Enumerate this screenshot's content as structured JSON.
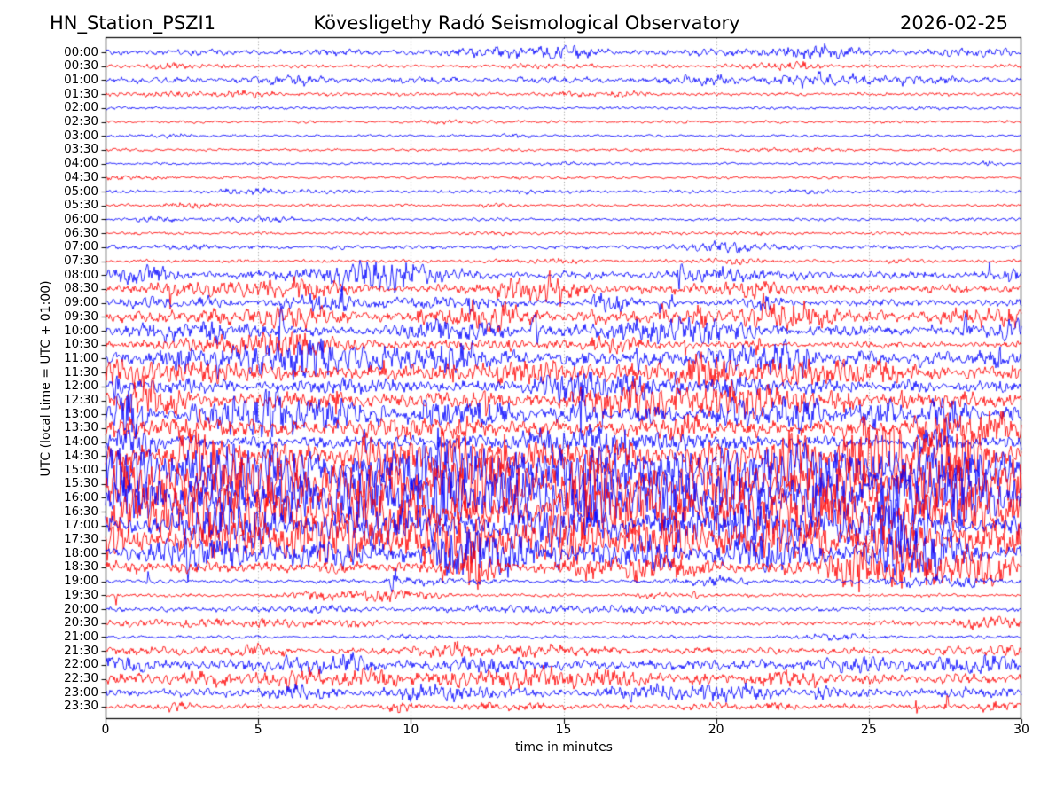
{
  "header": {
    "station": "HN_Station_PSZI1",
    "observatory": "Kövesligethy Radó Seismological Observatory",
    "date": "2026-02-25"
  },
  "chart_data": {
    "type": "line",
    "subtype": "helicorder-seismogram",
    "title": "HN_Station_PSZI1  Kövesligethy Radó Seismological Observatory  2026-02-25",
    "xlabel": "time in minutes",
    "ylabel": "UTC (local time = UTC + 01:00)",
    "xlim": [
      0,
      30
    ],
    "x_ticks": [
      0,
      5,
      10,
      15,
      20,
      25,
      30
    ],
    "grid": "vertical dotted gridlines at 5-minute intervals",
    "grid_color": "#9a9a9a",
    "spine_color": "#000000",
    "trace_colors": {
      "even_rows": "#0000ff",
      "odd_rows": "#ff0000"
    },
    "minutes_per_row": 30,
    "rows": [
      {
        "time": "00:00",
        "color": "#0000ff",
        "amp": 2.2,
        "burst": 0.2,
        "spike": 3
      },
      {
        "time": "00:30",
        "color": "#ff0000",
        "amp": 1.5,
        "burst": 0.15,
        "spike": 3
      },
      {
        "time": "01:00",
        "color": "#0000ff",
        "amp": 2.4,
        "burst": 0.2,
        "spike": 3
      },
      {
        "time": "01:30",
        "color": "#ff0000",
        "amp": 1.4,
        "burst": 0.1,
        "spike": 2
      },
      {
        "time": "02:00",
        "color": "#0000ff",
        "amp": 1.2,
        "burst": 0.05,
        "spike": 2
      },
      {
        "time": "02:30",
        "color": "#ff0000",
        "amp": 1.2,
        "burst": 0.05,
        "spike": 2
      },
      {
        "time": "03:00",
        "color": "#0000ff",
        "amp": 1.1,
        "burst": 0.05,
        "spike": 2
      },
      {
        "time": "03:30",
        "color": "#ff0000",
        "amp": 1.2,
        "burst": 0.05,
        "spike": 2
      },
      {
        "time": "04:00",
        "color": "#0000ff",
        "amp": 1.1,
        "burst": 0.05,
        "spike": 2
      },
      {
        "time": "04:30",
        "color": "#ff0000",
        "amp": 1.2,
        "burst": 0.05,
        "spike": 2
      },
      {
        "time": "05:00",
        "color": "#0000ff",
        "amp": 1.3,
        "burst": 0.1,
        "spike": 2
      },
      {
        "time": "05:30",
        "color": "#ff0000",
        "amp": 1.2,
        "burst": 0.05,
        "spike": 2
      },
      {
        "time": "06:00",
        "color": "#0000ff",
        "amp": 1.3,
        "burst": 0.1,
        "spike": 2
      },
      {
        "time": "06:30",
        "color": "#ff0000",
        "amp": 1.2,
        "burst": 0.05,
        "spike": 2
      },
      {
        "time": "07:00",
        "color": "#0000ff",
        "amp": 1.6,
        "burst": 0.15,
        "spike": 3
      },
      {
        "time": "07:30",
        "color": "#ff0000",
        "amp": 1.3,
        "burst": 0.1,
        "spike": 2
      },
      {
        "time": "08:00",
        "color": "#0000ff",
        "amp": 2.4,
        "burst": 0.5,
        "spike": 4
      },
      {
        "time": "08:30",
        "color": "#ff0000",
        "amp": 2.6,
        "burst": 0.6,
        "spike": 6
      },
      {
        "time": "09:00",
        "color": "#0000ff",
        "amp": 2.2,
        "burst": 0.5,
        "spike": 5
      },
      {
        "time": "09:30",
        "color": "#ff0000",
        "amp": 3.2,
        "burst": 0.7,
        "spike": 6
      },
      {
        "time": "10:00",
        "color": "#0000ff",
        "amp": 3.0,
        "burst": 0.6,
        "spike": 6
      },
      {
        "time": "10:30",
        "color": "#ff0000",
        "amp": 2.2,
        "burst": 0.4,
        "spike": 4
      },
      {
        "time": "11:00",
        "color": "#0000ff",
        "amp": 4.2,
        "burst": 0.7,
        "spike": 4
      },
      {
        "time": "11:30",
        "color": "#ff0000",
        "amp": 4.2,
        "burst": 0.7,
        "spike": 4
      },
      {
        "time": "12:00",
        "color": "#0000ff",
        "amp": 3.4,
        "burst": 0.6,
        "spike": 4
      },
      {
        "time": "12:30",
        "color": "#ff0000",
        "amp": 4.4,
        "burst": 0.7,
        "spike": 4
      },
      {
        "time": "13:00",
        "color": "#0000ff",
        "amp": 4.6,
        "burst": 0.8,
        "spike": 5
      },
      {
        "time": "13:30",
        "color": "#ff0000",
        "amp": 4.6,
        "burst": 0.7,
        "spike": 4
      },
      {
        "time": "14:00",
        "color": "#0000ff",
        "amp": 3.6,
        "burst": 0.6,
        "spike": 5
      },
      {
        "time": "14:30",
        "color": "#ff0000",
        "amp": 6.5,
        "burst": 0.9,
        "spike": 4
      },
      {
        "time": "15:00",
        "color": "#0000ff",
        "amp": 10,
        "burst": 0.95,
        "spike": 3
      },
      {
        "time": "15:30",
        "color": "#ff0000",
        "amp": 12.5,
        "burst": 0.95,
        "spike": 2.5
      },
      {
        "time": "16:00",
        "color": "#0000ff",
        "amp": 12.5,
        "burst": 0.95,
        "spike": 2.5
      },
      {
        "time": "16:30",
        "color": "#ff0000",
        "amp": 10.5,
        "burst": 0.9,
        "spike": 2.5
      },
      {
        "time": "17:00",
        "color": "#0000ff",
        "amp": 7.5,
        "burst": 0.85,
        "spike": 3
      },
      {
        "time": "17:30",
        "color": "#ff0000",
        "amp": 8.5,
        "burst": 0.9,
        "spike": 3
      },
      {
        "time": "18:00",
        "color": "#0000ff",
        "amp": 6.0,
        "burst": 0.8,
        "spike": 4
      },
      {
        "time": "18:30",
        "color": "#ff0000",
        "amp": 3.4,
        "burst": 0.6,
        "spike": 7
      },
      {
        "time": "19:00",
        "color": "#0000ff",
        "amp": 1.5,
        "burst": 0.15,
        "spike": 6
      },
      {
        "time": "19:30",
        "color": "#ff0000",
        "amp": 1.3,
        "burst": 0.1,
        "spike": 6
      },
      {
        "time": "20:00",
        "color": "#0000ff",
        "amp": 1.7,
        "burst": 0.2,
        "spike": 3
      },
      {
        "time": "20:30",
        "color": "#ff0000",
        "amp": 1.7,
        "burst": 0.2,
        "spike": 3
      },
      {
        "time": "21:00",
        "color": "#0000ff",
        "amp": 1.4,
        "burst": 0.1,
        "spike": 2
      },
      {
        "time": "21:30",
        "color": "#ff0000",
        "amp": 2.2,
        "burst": 0.4,
        "spike": 3
      },
      {
        "time": "22:00",
        "color": "#0000ff",
        "amp": 3.2,
        "burst": 0.5,
        "spike": 3
      },
      {
        "time": "22:30",
        "color": "#ff0000",
        "amp": 3.2,
        "burst": 0.5,
        "spike": 3
      },
      {
        "time": "23:00",
        "color": "#0000ff",
        "amp": 2.8,
        "burst": 0.4,
        "spike": 3
      },
      {
        "time": "23:30",
        "color": "#ff0000",
        "amp": 1.8,
        "burst": 0.3,
        "spike": 4
      }
    ]
  }
}
